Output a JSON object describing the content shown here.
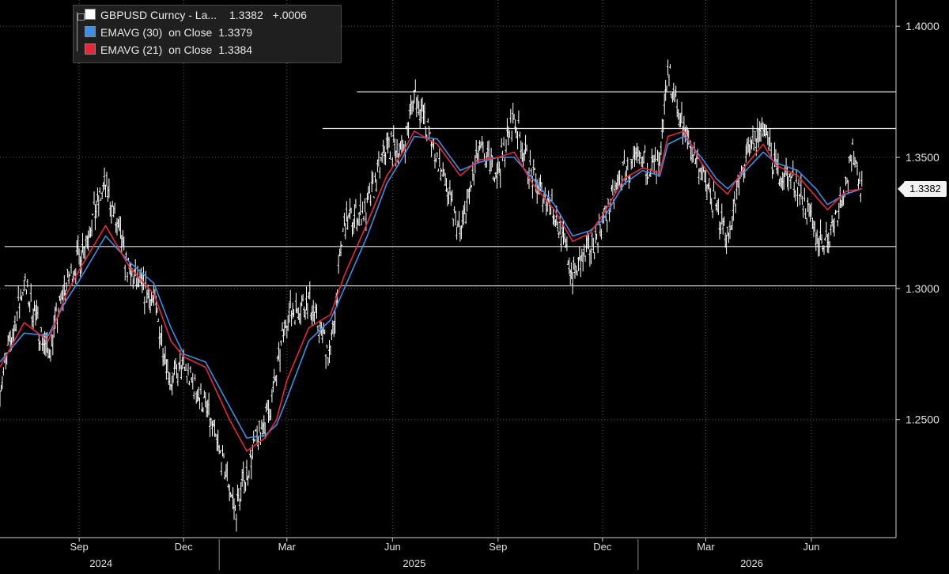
{
  "chart_data": {
    "type": "line",
    "legend": [
      {
        "label": "GBPUSD Curncy - La...",
        "value": "1.3382",
        "change": "+.0006",
        "color": "#ffffff"
      },
      {
        "label": "EMAVG (30)  on Close",
        "value": "1.3379",
        "color": "#3b8fe8"
      },
      {
        "label": "EMAVG (21)  on Close",
        "value": "1.3384",
        "color": "#e8283a"
      }
    ],
    "y_ticks": [
      "1.4000",
      "1.3500",
      "1.3000",
      "1.2500"
    ],
    "y_tick_values": [
      1.4,
      1.35,
      1.3,
      1.25
    ],
    "ylim": [
      1.205,
      1.41
    ],
    "x_ticks": [
      "Sep",
      "Dec",
      "Mar",
      "Jun",
      "Sep",
      "Dec",
      "Mar",
      "Jun"
    ],
    "x_tick_dates": [
      "2024-09-01",
      "2024-12-01",
      "2025-03-01",
      "2025-06-01",
      "2025-09-01",
      "2025-12-01",
      "2026-03-01",
      "2026-06-01"
    ],
    "years": [
      "2024",
      "2025",
      "2026"
    ],
    "x_range": [
      "2024-06-24",
      "2026-07-22"
    ],
    "last_value_label": "1.3382",
    "horizontal_levels": [
      {
        "value": 1.375,
        "start": "2025-05-01"
      },
      {
        "value": 1.361,
        "start": "2025-04-01"
      },
      {
        "value": 1.316,
        "start": "2024-06-28"
      },
      {
        "value": 1.301,
        "start": "2024-06-28"
      }
    ],
    "price_series": {
      "name": "GBPUSD Curncy",
      "points": [
        [
          "2024-06-24",
          1.262
        ],
        [
          "2024-07-15",
          1.302
        ],
        [
          "2024-08-05",
          1.275
        ],
        [
          "2024-08-19",
          1.3
        ],
        [
          "2024-09-01",
          1.312
        ],
        [
          "2024-09-24",
          1.34
        ],
        [
          "2024-10-15",
          1.305
        ],
        [
          "2024-11-05",
          1.295
        ],
        [
          "2024-11-20",
          1.265
        ],
        [
          "2024-12-01",
          1.27
        ],
        [
          "2024-12-20",
          1.255
        ],
        [
          "2025-01-10",
          1.225
        ],
        [
          "2025-01-15",
          1.215
        ],
        [
          "2025-02-01",
          1.24
        ],
        [
          "2025-02-15",
          1.255
        ],
        [
          "2025-03-01",
          1.29
        ],
        [
          "2025-03-20",
          1.295
        ],
        [
          "2025-04-08",
          1.275
        ],
        [
          "2025-04-20",
          1.325
        ],
        [
          "2025-05-10",
          1.33
        ],
        [
          "2025-05-27",
          1.355
        ],
        [
          "2025-06-10",
          1.352
        ],
        [
          "2025-06-20",
          1.375
        ],
        [
          "2025-07-10",
          1.35
        ],
        [
          "2025-07-30",
          1.32
        ],
        [
          "2025-08-15",
          1.352
        ],
        [
          "2025-09-01",
          1.345
        ],
        [
          "2025-09-15",
          1.365
        ],
        [
          "2025-10-01",
          1.342
        ],
        [
          "2025-10-20",
          1.33
        ],
        [
          "2025-11-05",
          1.305
        ],
        [
          "2025-11-20",
          1.315
        ],
        [
          "2025-12-01",
          1.325
        ],
        [
          "2025-12-20",
          1.345
        ],
        [
          "2026-01-05",
          1.348
        ],
        [
          "2026-01-20",
          1.345
        ],
        [
          "2026-01-27",
          1.383
        ],
        [
          "2026-02-10",
          1.36
        ],
        [
          "2026-02-25",
          1.345
        ],
        [
          "2026-03-10",
          1.33
        ],
        [
          "2026-03-20",
          1.32
        ],
        [
          "2026-04-05",
          1.35
        ],
        [
          "2026-04-20",
          1.362
        ],
        [
          "2026-05-01",
          1.345
        ],
        [
          "2026-05-20",
          1.34
        ],
        [
          "2026-06-05",
          1.32
        ],
        [
          "2026-06-15",
          1.318
        ],
        [
          "2026-07-01",
          1.34
        ],
        [
          "2026-07-08",
          1.352
        ],
        [
          "2026-07-15",
          1.338
        ]
      ]
    },
    "ema30_series": {
      "name": "EMAVG (30) on Close",
      "points": [
        [
          "2024-06-24",
          1.272
        ],
        [
          "2024-07-15",
          1.283
        ],
        [
          "2024-08-05",
          1.282
        ],
        [
          "2024-08-20",
          1.295
        ],
        [
          "2024-09-01",
          1.303
        ],
        [
          "2024-09-24",
          1.32
        ],
        [
          "2024-10-15",
          1.31
        ],
        [
          "2024-11-05",
          1.302
        ],
        [
          "2024-11-20",
          1.285
        ],
        [
          "2024-12-01",
          1.275
        ],
        [
          "2024-12-20",
          1.272
        ],
        [
          "2025-01-10",
          1.255
        ],
        [
          "2025-01-25",
          1.243
        ],
        [
          "2025-02-10",
          1.244
        ],
        [
          "2025-02-20",
          1.248
        ],
        [
          "2025-03-01",
          1.258
        ],
        [
          "2025-03-20",
          1.28
        ],
        [
          "2025-04-08",
          1.288
        ],
        [
          "2025-04-20",
          1.3
        ],
        [
          "2025-05-10",
          1.32
        ],
        [
          "2025-05-27",
          1.34
        ],
        [
          "2025-06-10",
          1.35
        ],
        [
          "2025-06-20",
          1.358
        ],
        [
          "2025-07-10",
          1.357
        ],
        [
          "2025-07-30",
          1.345
        ],
        [
          "2025-08-15",
          1.348
        ],
        [
          "2025-09-01",
          1.35
        ],
        [
          "2025-09-15",
          1.35
        ],
        [
          "2025-10-01",
          1.342
        ],
        [
          "2025-10-20",
          1.332
        ],
        [
          "2025-11-05",
          1.32
        ],
        [
          "2025-11-20",
          1.322
        ],
        [
          "2025-12-01",
          1.326
        ],
        [
          "2025-12-20",
          1.34
        ],
        [
          "2026-01-05",
          1.345
        ],
        [
          "2026-01-20",
          1.343
        ],
        [
          "2026-01-27",
          1.355
        ],
        [
          "2026-02-10",
          1.358
        ],
        [
          "2026-02-25",
          1.35
        ],
        [
          "2026-03-10",
          1.342
        ],
        [
          "2026-03-20",
          1.338
        ],
        [
          "2026-04-05",
          1.345
        ],
        [
          "2026-04-20",
          1.352
        ],
        [
          "2026-05-01",
          1.348
        ],
        [
          "2026-05-20",
          1.345
        ],
        [
          "2026-06-05",
          1.338
        ],
        [
          "2026-06-15",
          1.332
        ],
        [
          "2026-07-01",
          1.336
        ],
        [
          "2026-07-15",
          1.338
        ]
      ]
    },
    "ema21_series": {
      "name": "EMAVG (21) on Close",
      "points": [
        [
          "2024-06-24",
          1.27
        ],
        [
          "2024-07-15",
          1.287
        ],
        [
          "2024-08-05",
          1.28
        ],
        [
          "2024-08-20",
          1.297
        ],
        [
          "2024-09-01",
          1.307
        ],
        [
          "2024-09-24",
          1.324
        ],
        [
          "2024-10-15",
          1.308
        ],
        [
          "2024-11-05",
          1.298
        ],
        [
          "2024-11-20",
          1.28
        ],
        [
          "2024-12-01",
          1.274
        ],
        [
          "2024-12-20",
          1.27
        ],
        [
          "2025-01-10",
          1.25
        ],
        [
          "2025-01-25",
          1.238
        ],
        [
          "2025-02-10",
          1.243
        ],
        [
          "2025-02-20",
          1.25
        ],
        [
          "2025-03-01",
          1.265
        ],
        [
          "2025-03-20",
          1.285
        ],
        [
          "2025-04-08",
          1.29
        ],
        [
          "2025-04-20",
          1.305
        ],
        [
          "2025-05-10",
          1.325
        ],
        [
          "2025-05-27",
          1.343
        ],
        [
          "2025-06-10",
          1.352
        ],
        [
          "2025-06-20",
          1.36
        ],
        [
          "2025-07-10",
          1.355
        ],
        [
          "2025-07-30",
          1.343
        ],
        [
          "2025-08-15",
          1.349
        ],
        [
          "2025-09-01",
          1.35
        ],
        [
          "2025-09-15",
          1.352
        ],
        [
          "2025-10-01",
          1.34
        ],
        [
          "2025-10-20",
          1.33
        ],
        [
          "2025-11-05",
          1.318
        ],
        [
          "2025-11-20",
          1.321
        ],
        [
          "2025-12-01",
          1.328
        ],
        [
          "2025-12-20",
          1.342
        ],
        [
          "2026-01-05",
          1.346
        ],
        [
          "2026-01-20",
          1.344
        ],
        [
          "2026-01-27",
          1.358
        ],
        [
          "2026-02-10",
          1.36
        ],
        [
          "2026-02-25",
          1.348
        ],
        [
          "2026-03-10",
          1.34
        ],
        [
          "2026-03-20",
          1.336
        ],
        [
          "2026-04-05",
          1.347
        ],
        [
          "2026-04-20",
          1.355
        ],
        [
          "2026-05-01",
          1.347
        ],
        [
          "2026-05-20",
          1.343
        ],
        [
          "2026-06-05",
          1.335
        ],
        [
          "2026-06-15",
          1.33
        ],
        [
          "2026-07-01",
          1.337
        ],
        [
          "2026-07-15",
          1.338
        ]
      ]
    }
  }
}
